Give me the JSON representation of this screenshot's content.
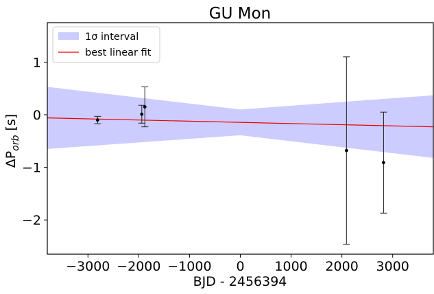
{
  "chart_data": {
    "type": "scatter",
    "title": "GU Mon",
    "xlabel": "BJD - 2456394",
    "ylabel_prefix": "ΔP",
    "ylabel_subscript": "orb",
    "ylabel_suffix": " [s]",
    "xlim": [
      -3800,
      3800
    ],
    "ylim": [
      -2.65,
      1.75
    ],
    "xticks": [
      -3000,
      -2000,
      -1000,
      0,
      1000,
      2000,
      3000
    ],
    "xtick_labels": [
      "−3000",
      "−2000",
      "−1000",
      "0",
      "1000",
      "2000",
      "3000"
    ],
    "yticks": [
      1,
      0,
      -1,
      -2
    ],
    "ytick_labels": [
      "1",
      "0",
      "−1",
      "−2"
    ],
    "grid": false,
    "legend_position": "top-left",
    "legend": {
      "interval_label": "1σ interval",
      "fit_label": "best linear fit"
    },
    "colors": {
      "interval": "#ccccff",
      "fit": "#ee0000",
      "points": "#000000",
      "errorbars": "#222222"
    },
    "best_fit": {
      "x": [
        -3800,
        3800
      ],
      "y": [
        -0.06,
        -0.23
      ]
    },
    "interval": {
      "x": [
        -3800,
        0,
        3800
      ],
      "upper": [
        0.53,
        0.1,
        0.37
      ],
      "lower": [
        -0.65,
        -0.39,
        -0.82
      ]
    },
    "points": [
      {
        "x": -2810,
        "y": -0.1,
        "yerr": 0.07
      },
      {
        "x": -1940,
        "y": 0.01,
        "yerr": 0.17
      },
      {
        "x": -1880,
        "y": 0.15,
        "yerr": 0.38
      },
      {
        "x": 2090,
        "y": -0.68,
        "yerr": 1.78
      },
      {
        "x": 2820,
        "y": -0.91,
        "yerr": 0.96
      }
    ]
  }
}
